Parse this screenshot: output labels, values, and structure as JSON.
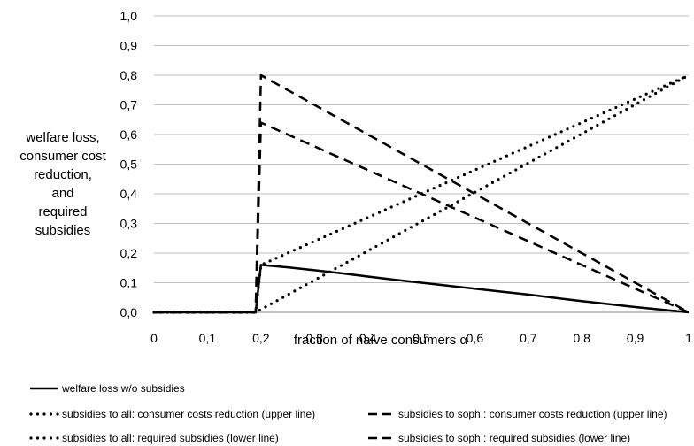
{
  "chart_data": {
    "type": "line",
    "xlabel": "fraction of naive consumers α",
    "ylabel_lines": [
      "welfare loss,",
      "consumer cost",
      "reduction,",
      "and",
      "required",
      "subsidies"
    ],
    "xlim": [
      0,
      1
    ],
    "ylim": [
      0,
      1
    ],
    "x_ticks": [
      "0",
      "0,1",
      "0,2",
      "0,3",
      "0,4",
      "0,5",
      "0,6",
      "0,7",
      "0,8",
      "0,9",
      "1"
    ],
    "y_ticks": [
      "0,0",
      "0,1",
      "0,2",
      "0,3",
      "0,4",
      "0,5",
      "0,6",
      "0,7",
      "0,8",
      "0,9",
      "1,0"
    ],
    "grid": "horizontal",
    "legend_position": "bottom",
    "series": [
      {
        "name": "welfare loss w/o subsidies",
        "style": "solid",
        "x": [
          0,
          0.19,
          0.2,
          0.25,
          0.3,
          0.35,
          0.4,
          0.45,
          0.5,
          0.55,
          0.6,
          0.65,
          0.7,
          0.75,
          0.8,
          0.85,
          0.9,
          0.95,
          1
        ],
        "y": [
          0,
          0,
          0.16,
          0.152,
          0.142,
          0.132,
          0.121,
          0.11,
          0.1,
          0.09,
          0.08,
          0.07,
          0.06,
          0.049,
          0.038,
          0.028,
          0.018,
          0.009,
          0
        ]
      },
      {
        "name": "subsidies to all: consumer costs reduction (upper line)",
        "style": "dotted",
        "x": [
          0,
          0.19,
          0.2,
          1
        ],
        "y": [
          0,
          0,
          0.16,
          0.8
        ]
      },
      {
        "name": "subsidies to all: required subsidies (lower line)",
        "style": "dotted",
        "x": [
          0,
          0.19,
          1
        ],
        "y": [
          0,
          0,
          0.8
        ]
      },
      {
        "name": "subsidies to soph.: consumer costs reduction (upper line)",
        "style": "dashed",
        "x": [
          0,
          0.19,
          0.2,
          1
        ],
        "y": [
          0,
          0,
          0.8,
          0
        ]
      },
      {
        "name": "subsidies to soph.: required subsidies (lower line)",
        "style": "dashed",
        "x": [
          0,
          0.19,
          0.2,
          1
        ],
        "y": [
          0,
          0,
          0.64,
          0
        ]
      }
    ]
  }
}
